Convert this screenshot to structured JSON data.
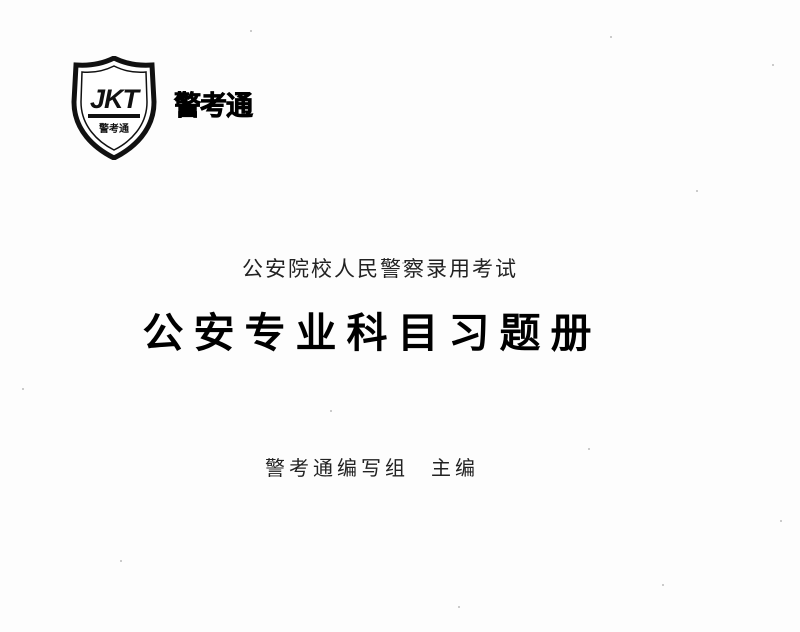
{
  "logo": {
    "monogram": "JKT",
    "emblem_text": "警考通",
    "icon": "shield-logo-icon"
  },
  "brand": {
    "name": "警考通"
  },
  "cover": {
    "subtitle": "公安院校人民警察录用考试",
    "title": "公安专业科目习题册",
    "editor": "警考通编写组",
    "role": "主编"
  },
  "colors": {
    "ink": "#111111",
    "background": "#fdfdfd"
  }
}
